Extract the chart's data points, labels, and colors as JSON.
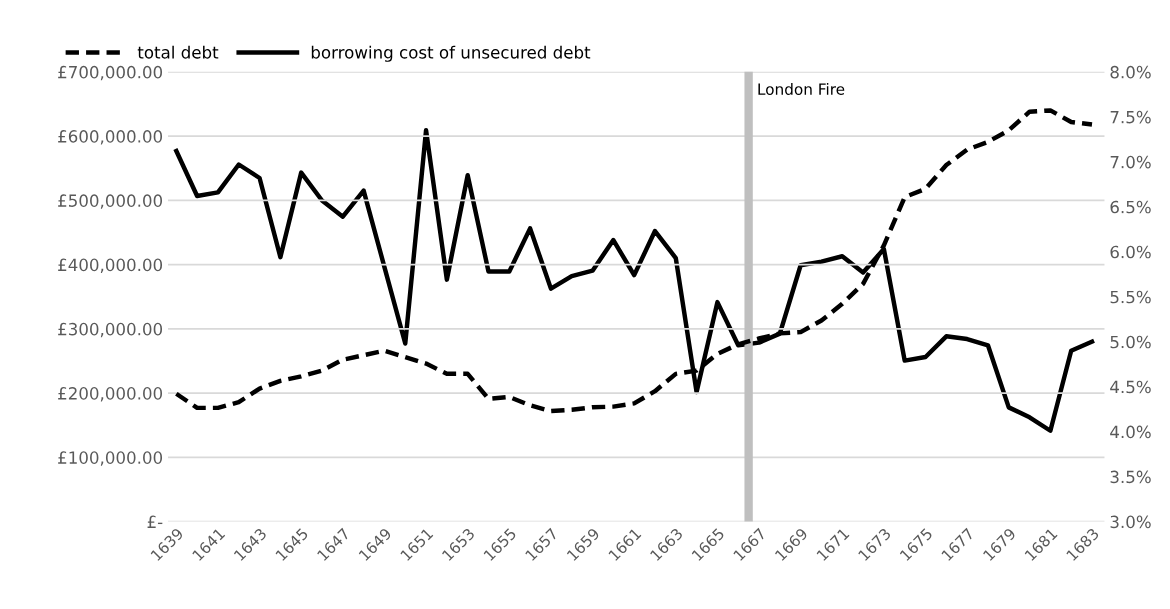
{
  "chart_data": {
    "type": "line",
    "x": [
      1639,
      1640,
      1641,
      1642,
      1643,
      1644,
      1645,
      1646,
      1647,
      1648,
      1649,
      1650,
      1651,
      1652,
      1653,
      1654,
      1655,
      1656,
      1657,
      1658,
      1659,
      1660,
      1661,
      1662,
      1663,
      1664,
      1665,
      1666,
      1667,
      1668,
      1669,
      1670,
      1671,
      1672,
      1673,
      1674,
      1675,
      1676,
      1677,
      1678,
      1679,
      1680,
      1681,
      1682,
      1683
    ],
    "series": [
      {
        "name": "total debt",
        "color": "#000000",
        "line_style": "dashed",
        "values": [
          199000,
          177000,
          177000,
          186000,
          207000,
          219000,
          226000,
          235000,
          252000,
          259000,
          266000,
          256000,
          246000,
          230000,
          230000,
          191000,
          194000,
          181000,
          172000,
          174000,
          178000,
          179000,
          184000,
          203000,
          230000,
          235000,
          261000,
          276000,
          285000,
          293000,
          295000,
          313000,
          339000,
          370000,
          430000,
          505000,
          518000,
          555000,
          579000,
          591000,
          609000,
          638000,
          640000,
          622000,
          618000
        ]
      },
      {
        "name": "borrowing cost of unsecured debt",
        "color": "#000000",
        "line_style": "solid",
        "axis": "y2",
        "values": [
          7.12,
          6.62,
          6.66,
          6.97,
          6.82,
          5.94,
          6.88,
          6.57,
          6.39,
          6.68,
          5.83,
          4.98,
          7.35,
          5.69,
          6.85,
          5.78,
          5.78,
          6.26,
          5.59,
          5.73,
          5.79,
          6.13,
          5.74,
          6.23,
          5.93,
          4.44,
          5.44,
          4.96,
          4.99,
          5.09,
          5.85,
          5.89,
          5.95,
          5.77,
          6.03,
          4.79,
          4.83,
          5.06,
          5.03,
          4.96,
          4.27,
          4.16,
          4.01,
          4.9,
          5.0
        ]
      }
    ],
    "xlim": [
      1638.6,
      1683.6
    ],
    "xticks": [
      1639,
      1641,
      1643,
      1645,
      1647,
      1649,
      1651,
      1653,
      1655,
      1657,
      1659,
      1661,
      1663,
      1665,
      1667,
      1669,
      1671,
      1673,
      1675,
      1677,
      1679,
      1681,
      1683
    ],
    "ylim": [
      0,
      700000
    ],
    "yticks": [
      {
        "value": 0,
        "label": "£-"
      },
      {
        "value": 100000,
        "label": "£100,000.00"
      },
      {
        "value": 200000,
        "label": "£200,000.00"
      },
      {
        "value": 300000,
        "label": "£300,000.00"
      },
      {
        "value": 400000,
        "label": "£400,000.00"
      },
      {
        "value": 500000,
        "label": "£500,000.00"
      },
      {
        "value": 600000,
        "label": "£600,000.00"
      },
      {
        "value": 700000,
        "label": "£700,000.00"
      }
    ],
    "y2lim": [
      3.0,
      8.0
    ],
    "y2ticks": [
      {
        "value": 3.0,
        "label": "3.0%"
      },
      {
        "value": 3.5,
        "label": "3.5%"
      },
      {
        "value": 4.0,
        "label": "4.0%"
      },
      {
        "value": 4.5,
        "label": "4.5%"
      },
      {
        "value": 5.0,
        "label": "5.0%"
      },
      {
        "value": 5.5,
        "label": "5.5%"
      },
      {
        "value": 6.0,
        "label": "6.0%"
      },
      {
        "value": 6.5,
        "label": "6.5%"
      },
      {
        "value": 7.0,
        "label": "7.0%"
      },
      {
        "value": 7.5,
        "label": "7.5%"
      },
      {
        "value": 8.0,
        "label": "8.0%"
      }
    ],
    "ref_lines": [
      {
        "axis": "x",
        "value": 1666.5,
        "label": "London Fire",
        "color": "#bfbfbf"
      }
    ],
    "grid": "y",
    "legend": "top left",
    "marker": "none"
  }
}
